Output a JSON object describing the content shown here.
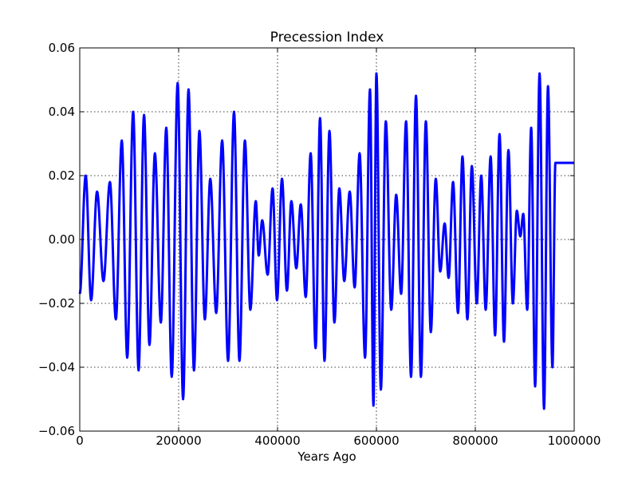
{
  "chart_data": {
    "type": "line",
    "title": "Precession Index",
    "xlabel": "Years Ago",
    "ylabel": "",
    "xlim": [
      0,
      1000000
    ],
    "ylim": [
      -0.06,
      0.06
    ],
    "xticks": [
      0,
      200000,
      400000,
      600000,
      800000,
      1000000
    ],
    "xtick_labels": [
      "0",
      "200000",
      "400000",
      "600000",
      "800000",
      "1000000"
    ],
    "yticks": [
      -0.06,
      -0.04,
      -0.02,
      0.0,
      0.02,
      0.04,
      0.06
    ],
    "ytick_labels": [
      "−0.06",
      "−0.04",
      "−0.02",
      "0.00",
      "0.02",
      "0.04",
      "0.06"
    ],
    "grid": true,
    "line_color": "#0000ff",
    "series": [
      {
        "extrema": [
          [
            0,
            -0.017
          ],
          [
            12000,
            0.02
          ],
          [
            23000,
            -0.019
          ],
          [
            35000,
            0.015
          ],
          [
            48000,
            -0.013
          ],
          [
            61000,
            0.018
          ],
          [
            73000,
            -0.025
          ],
          [
            85000,
            0.031
          ],
          [
            96000,
            -0.037
          ],
          [
            108000,
            0.04
          ],
          [
            119000,
            -0.041
          ],
          [
            130000,
            0.039
          ],
          [
            141000,
            -0.033
          ],
          [
            152000,
            0.027
          ],
          [
            164000,
            -0.026
          ],
          [
            175000,
            0.035
          ],
          [
            186000,
            -0.043
          ],
          [
            198000,
            0.049
          ],
          [
            209000,
            -0.05
          ],
          [
            220000,
            0.047
          ],
          [
            231000,
            -0.041
          ],
          [
            242000,
            0.034
          ],
          [
            253000,
            -0.025
          ],
          [
            264000,
            0.019
          ],
          [
            276000,
            -0.023
          ],
          [
            288000,
            0.031
          ],
          [
            300000,
            -0.038
          ],
          [
            312000,
            0.04
          ],
          [
            323000,
            -0.038
          ],
          [
            334000,
            0.031
          ],
          [
            345000,
            -0.022
          ],
          [
            356000,
            0.012
          ],
          [
            362000,
            -0.005
          ],
          [
            369000,
            0.006
          ],
          [
            380000,
            -0.011
          ],
          [
            390000,
            0.016
          ],
          [
            399000,
            -0.019
          ],
          [
            409000,
            0.019
          ],
          [
            419000,
            -0.016
          ],
          [
            428000,
            0.012
          ],
          [
            438000,
            -0.009
          ],
          [
            447000,
            0.011
          ],
          [
            457000,
            -0.018
          ],
          [
            467000,
            0.027
          ],
          [
            477000,
            -0.034
          ],
          [
            486000,
            0.038
          ],
          [
            495000,
            -0.038
          ],
          [
            505000,
            0.034
          ],
          [
            515000,
            -0.026
          ],
          [
            525000,
            0.016
          ],
          [
            535000,
            -0.013
          ],
          [
            546000,
            0.015
          ],
          [
            556000,
            -0.015
          ],
          [
            566000,
            0.027
          ],
          [
            577000,
            -0.037
          ],
          [
            587000,
            0.047
          ],
          [
            594000,
            -0.052
          ],
          [
            600000,
            0.052
          ],
          [
            609000,
            -0.047
          ],
          [
            619000,
            0.037
          ],
          [
            630000,
            -0.022
          ],
          [
            640000,
            0.014
          ],
          [
            650000,
            -0.017
          ],
          [
            660000,
            0.037
          ],
          [
            670000,
            -0.043
          ],
          [
            680000,
            0.045
          ],
          [
            690000,
            -0.043
          ],
          [
            700000,
            0.037
          ],
          [
            710000,
            -0.029
          ],
          [
            720000,
            0.019
          ],
          [
            729000,
            -0.01
          ],
          [
            738000,
            0.005
          ],
          [
            746000,
            -0.012
          ],
          [
            755000,
            0.018
          ],
          [
            765000,
            -0.023
          ],
          [
            774000,
            0.026
          ],
          [
            784000,
            -0.025
          ],
          [
            793000,
            0.023
          ],
          [
            803000,
            -0.02
          ],
          [
            812000,
            0.02
          ],
          [
            821000,
            -0.022
          ],
          [
            831000,
            0.026
          ],
          [
            840000,
            -0.03
          ],
          [
            849000,
            0.033
          ],
          [
            858000,
            -0.032
          ],
          [
            867000,
            0.028
          ],
          [
            876000,
            -0.02
          ],
          [
            884000,
            0.009
          ],
          [
            891000,
            0.001
          ],
          [
            897000,
            0.008
          ],
          [
            905000,
            -0.022
          ],
          [
            913000,
            0.035
          ],
          [
            921000,
            -0.046
          ],
          [
            930000,
            0.052
          ],
          [
            939000,
            -0.053
          ],
          [
            947000,
            0.048
          ],
          [
            956000,
            -0.04
          ],
          [
            962000,
            0.024
          ]
        ]
      }
    ]
  }
}
